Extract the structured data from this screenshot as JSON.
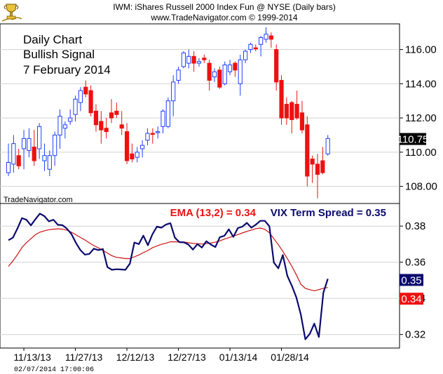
{
  "header": {
    "line1": "IWM:  iShares Russell 2000 Index Fun @ NYSE  (Daily bars)",
    "line2": "www.TradeNavigator.com © 1999-2014"
  },
  "annotation": {
    "line1": "Daily Chart",
    "line2": "Bullish Signal",
    "line3": "7 February 2014"
  },
  "watermark": "TradeNavigator.com",
  "timestamp": "02/07/2014 17:00:06",
  "colors": {
    "up": "#1f3fff",
    "down": "#ee1111",
    "vix": "#0a0a6e",
    "ema": "#cc1111",
    "grid": "#d2d2d2",
    "axis": "#000000",
    "bg": "#ffffff"
  },
  "chart_data": [
    {
      "type": "candlestick",
      "name": "IWM",
      "ylim": [
        107,
        117.5
      ],
      "yticks": [
        108,
        110,
        112,
        114,
        116
      ],
      "ytick_labels": [
        "108.00",
        "110.00",
        "112.00",
        "114.00",
        "116.00"
      ],
      "last_price_label": "110.75",
      "last_price": 110.75,
      "candles": [
        {
          "o": 108.8,
          "h": 110.5,
          "l": 108.6,
          "c": 109.4,
          "up": true
        },
        {
          "o": 109.3,
          "h": 111.0,
          "l": 108.8,
          "c": 110.5,
          "up": true
        },
        {
          "o": 109.8,
          "h": 110.2,
          "l": 109.0,
          "c": 109.2,
          "up": false
        },
        {
          "o": 110.2,
          "h": 111.3,
          "l": 109.0,
          "c": 110.8,
          "up": true
        },
        {
          "o": 110.1,
          "h": 111.4,
          "l": 109.7,
          "c": 110.8,
          "up": true
        },
        {
          "o": 110.3,
          "h": 111.3,
          "l": 109.2,
          "c": 109.5,
          "up": false
        },
        {
          "o": 110.2,
          "h": 111.7,
          "l": 109.6,
          "c": 111.5,
          "up": true
        },
        {
          "o": 109.5,
          "h": 110.5,
          "l": 108.9,
          "c": 109.8,
          "up": true
        },
        {
          "o": 109.0,
          "h": 110.1,
          "l": 108.6,
          "c": 109.8,
          "up": true
        },
        {
          "o": 109.8,
          "h": 111.2,
          "l": 109.2,
          "c": 111.0,
          "up": true
        },
        {
          "o": 111.0,
          "h": 112.5,
          "l": 110.2,
          "c": 112.1,
          "up": true
        },
        {
          "o": 111.4,
          "h": 111.8,
          "l": 110.8,
          "c": 111.6,
          "up": true
        },
        {
          "o": 111.8,
          "h": 112.5,
          "l": 111.6,
          "c": 112.0,
          "up": true
        },
        {
          "o": 112.2,
          "h": 113.3,
          "l": 111.8,
          "c": 113.1,
          "up": true
        },
        {
          "o": 112.9,
          "h": 113.8,
          "l": 112.4,
          "c": 113.6,
          "up": true
        },
        {
          "o": 113.8,
          "h": 114.2,
          "l": 113.2,
          "c": 113.4,
          "up": false
        },
        {
          "o": 113.6,
          "h": 113.9,
          "l": 112.1,
          "c": 112.3,
          "up": false
        },
        {
          "o": 112.4,
          "h": 112.8,
          "l": 111.2,
          "c": 111.6,
          "up": false
        },
        {
          "o": 111.8,
          "h": 112.4,
          "l": 110.5,
          "c": 111.3,
          "up": false
        },
        {
          "o": 111.4,
          "h": 112.0,
          "l": 110.8,
          "c": 111.2,
          "up": false
        },
        {
          "o": 112.3,
          "h": 113.1,
          "l": 111.7,
          "c": 112.0,
          "up": false
        },
        {
          "o": 112.4,
          "h": 112.9,
          "l": 112.0,
          "c": 112.2,
          "up": false
        },
        {
          "o": 111.6,
          "h": 112.4,
          "l": 111.0,
          "c": 111.4,
          "up": false
        },
        {
          "o": 111.2,
          "h": 111.7,
          "l": 109.3,
          "c": 109.5,
          "up": false
        },
        {
          "o": 109.6,
          "h": 110.5,
          "l": 109.4,
          "c": 109.9,
          "up": false
        },
        {
          "o": 109.7,
          "h": 110.3,
          "l": 109.4,
          "c": 110.0,
          "up": true
        },
        {
          "o": 110.2,
          "h": 110.7,
          "l": 109.7,
          "c": 110.4,
          "up": true
        },
        {
          "o": 110.7,
          "h": 111.4,
          "l": 110.4,
          "c": 111.1,
          "up": true
        },
        {
          "o": 111.1,
          "h": 111.4,
          "l": 110.5,
          "c": 111.1,
          "up": false
        },
        {
          "o": 111.2,
          "h": 111.5,
          "l": 110.8,
          "c": 111.2,
          "up": true
        },
        {
          "o": 111.5,
          "h": 112.5,
          "l": 111.1,
          "c": 112.4,
          "up": true
        },
        {
          "o": 111.5,
          "h": 113.2,
          "l": 111.4,
          "c": 113.0,
          "up": true
        },
        {
          "o": 113.0,
          "h": 114.5,
          "l": 112.1,
          "c": 114.1,
          "up": true
        },
        {
          "o": 114.2,
          "h": 115.0,
          "l": 114.0,
          "c": 114.8,
          "up": true
        },
        {
          "o": 115.0,
          "h": 115.9,
          "l": 114.9,
          "c": 115.8,
          "up": true
        },
        {
          "o": 115.2,
          "h": 116.0,
          "l": 114.9,
          "c": 115.6,
          "up": true
        },
        {
          "o": 115.6,
          "h": 115.9,
          "l": 114.7,
          "c": 115.2,
          "up": false
        },
        {
          "o": 115.2,
          "h": 115.5,
          "l": 115.0,
          "c": 115.3,
          "up": true
        },
        {
          "o": 115.5,
          "h": 115.7,
          "l": 115.2,
          "c": 115.4,
          "up": false
        },
        {
          "o": 115.2,
          "h": 115.4,
          "l": 113.6,
          "c": 114.2,
          "up": false
        },
        {
          "o": 114.4,
          "h": 114.9,
          "l": 114.1,
          "c": 114.7,
          "up": true
        },
        {
          "o": 114.8,
          "h": 115.0,
          "l": 113.7,
          "c": 113.8,
          "up": false
        },
        {
          "o": 114.0,
          "h": 115.3,
          "l": 113.9,
          "c": 115.1,
          "up": true
        },
        {
          "o": 114.7,
          "h": 115.4,
          "l": 114.5,
          "c": 115.1,
          "up": true
        },
        {
          "o": 115.2,
          "h": 115.3,
          "l": 114.4,
          "c": 114.8,
          "up": false
        },
        {
          "o": 114.0,
          "h": 115.7,
          "l": 113.3,
          "c": 115.4,
          "up": true
        },
        {
          "o": 115.4,
          "h": 116.0,
          "l": 115.2,
          "c": 115.9,
          "up": true
        },
        {
          "o": 116.0,
          "h": 116.4,
          "l": 115.8,
          "c": 116.3,
          "up": true
        },
        {
          "o": 116.1,
          "h": 116.3,
          "l": 115.9,
          "c": 116.1,
          "up": false
        },
        {
          "o": 116.3,
          "h": 116.8,
          "l": 115.6,
          "c": 116.7,
          "up": true
        },
        {
          "o": 116.6,
          "h": 117.3,
          "l": 116.4,
          "c": 116.9,
          "up": true
        },
        {
          "o": 116.8,
          "h": 117.0,
          "l": 116.1,
          "c": 116.6,
          "up": false
        },
        {
          "o": 116.0,
          "h": 116.3,
          "l": 113.6,
          "c": 114.1,
          "up": false
        },
        {
          "o": 114.2,
          "h": 114.5,
          "l": 111.6,
          "c": 112.0,
          "up": false
        },
        {
          "o": 112.8,
          "h": 113.2,
          "l": 111.6,
          "c": 112.0,
          "up": false
        },
        {
          "o": 112.9,
          "h": 113.0,
          "l": 111.1,
          "c": 111.9,
          "up": false
        },
        {
          "o": 112.8,
          "h": 113.6,
          "l": 111.9,
          "c": 112.0,
          "up": false
        },
        {
          "o": 112.3,
          "h": 113.0,
          "l": 111.1,
          "c": 111.3,
          "up": false
        },
        {
          "o": 111.6,
          "h": 112.1,
          "l": 108.0,
          "c": 108.6,
          "up": false
        },
        {
          "o": 109.3,
          "h": 109.8,
          "l": 108.2,
          "c": 109.6,
          "up": false
        },
        {
          "o": 109.3,
          "h": 109.9,
          "l": 107.3,
          "c": 108.7,
          "up": false
        },
        {
          "o": 109.5,
          "h": 110.3,
          "l": 108.7,
          "c": 108.8,
          "up": false
        },
        {
          "o": 109.9,
          "h": 111.0,
          "l": 109.8,
          "c": 110.8,
          "up": true
        }
      ]
    },
    {
      "type": "line",
      "name": "VIX Term Spread",
      "legend": "VIX Term Spread = 0.35",
      "ema_legend": "EMA (13,2) = 0.34",
      "ylim": [
        0.3125,
        0.3925
      ],
      "yticks": [
        0.32,
        0.34,
        0.36,
        0.38
      ],
      "ytick_labels": [
        "0.32",
        "0.34",
        "0.36",
        "0.38"
      ],
      "vix_badge": "0.35",
      "ema_badge": "0.34",
      "vix_last": 0.35,
      "ema_last": 0.34,
      "x_labels": [
        "11/13/13",
        "11/27/13",
        "12/12/13",
        "12/27/13",
        "01/13/14",
        "01/28/14"
      ],
      "x_label_index": [
        3,
        13,
        23,
        33,
        43,
        53
      ],
      "series": [
        {
          "name": "VIX Term Spread",
          "values": [
            0.3722,
            0.3736,
            0.3786,
            0.3844,
            0.3835,
            0.3804,
            0.3838,
            0.3869,
            0.3855,
            0.3826,
            0.3835,
            0.3807,
            0.3805,
            0.3786,
            0.3756,
            0.3707,
            0.3667,
            0.3642,
            0.3646,
            0.3675,
            0.3667,
            0.3673,
            0.3573,
            0.3558,
            0.3561,
            0.356,
            0.3558,
            0.3592,
            0.3709,
            0.37,
            0.3747,
            0.3694,
            0.3754,
            0.3797,
            0.3791,
            0.3808,
            0.3816,
            0.3736,
            0.3711,
            0.371,
            0.3698,
            0.367,
            0.37,
            0.3681,
            0.3716,
            0.3698,
            0.3684,
            0.3739,
            0.3746,
            0.3782,
            0.374,
            0.3789,
            0.3797,
            0.3818,
            0.3791,
            0.3808,
            0.3829,
            0.3829,
            0.3799,
            0.3598,
            0.3566,
            0.364,
            0.3525,
            0.3469,
            0.3405,
            0.331,
            0.3173,
            0.3204,
            0.326,
            0.3186,
            0.3431,
            0.3508
          ]
        },
        {
          "name": "EMA (13,2)",
          "values": [
            0.3577,
            0.3607,
            0.3641,
            0.3681,
            0.3708,
            0.373,
            0.3752,
            0.3766,
            0.3774,
            0.378,
            0.3783,
            0.3785,
            0.3783,
            0.3777,
            0.3766,
            0.3752,
            0.3737,
            0.3723,
            0.3707,
            0.3692,
            0.3679,
            0.3665,
            0.3651,
            0.3636,
            0.3627,
            0.3624,
            0.362,
            0.362,
            0.363,
            0.364,
            0.3653,
            0.3665,
            0.368,
            0.369,
            0.3699,
            0.3705,
            0.3713,
            0.3713,
            0.3712,
            0.3712,
            0.3708,
            0.3704,
            0.3703,
            0.3701,
            0.3703,
            0.3706,
            0.3711,
            0.3718,
            0.3728,
            0.3736,
            0.3745,
            0.3753,
            0.3762,
            0.3771,
            0.3778,
            0.3786,
            0.3789,
            0.3782,
            0.3763,
            0.373,
            0.3697,
            0.366,
            0.362,
            0.3577,
            0.353,
            0.3478,
            0.3455,
            0.3448,
            0.3442,
            0.3448,
            0.3456,
            0.346
          ]
        }
      ]
    }
  ]
}
